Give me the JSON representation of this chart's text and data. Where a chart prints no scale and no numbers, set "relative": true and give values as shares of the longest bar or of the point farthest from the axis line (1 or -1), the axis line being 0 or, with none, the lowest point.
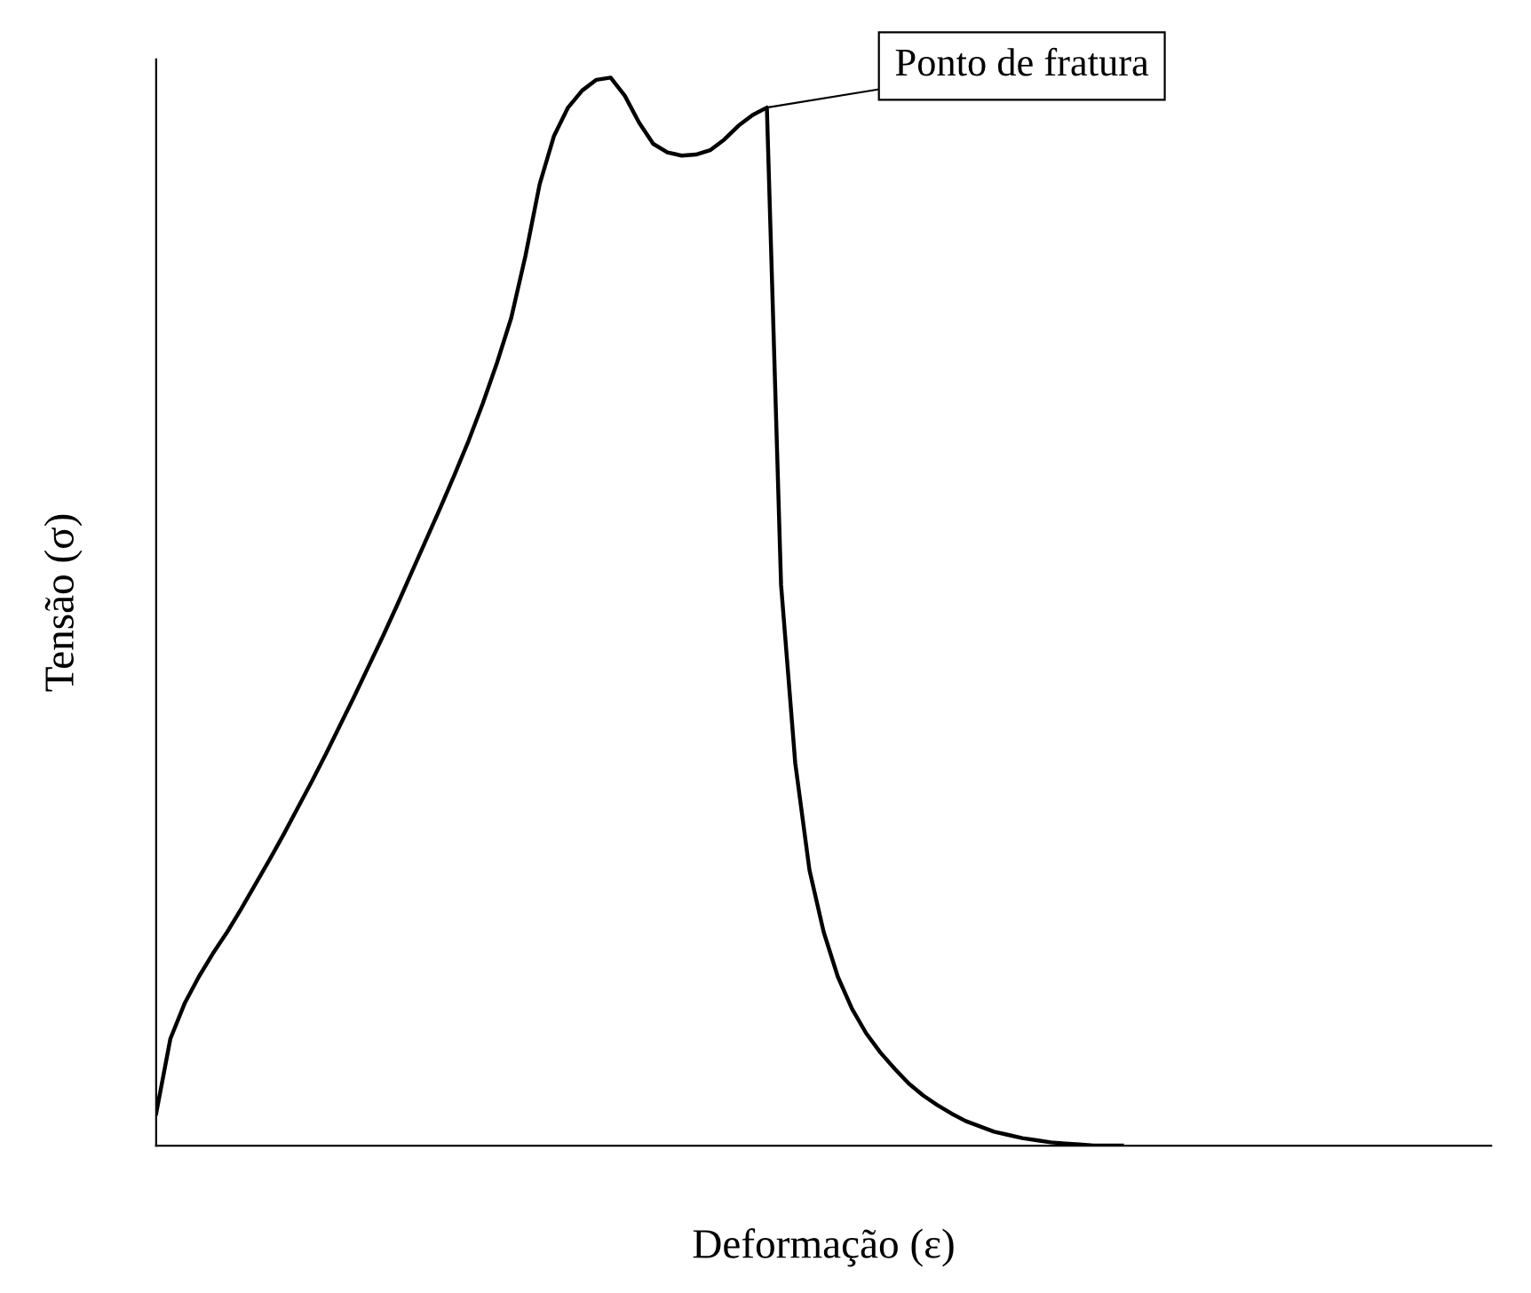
{
  "chart_data": {
    "type": "line",
    "relative": true,
    "xlabel": "Deformação (ε)",
    "ylabel": "Tensão (σ)",
    "annotations": [
      "Ponto de fratura"
    ],
    "categories": [
      null,
      null,
      null,
      null,
      null,
      null,
      null,
      null,
      null,
      null,
      null,
      null,
      null,
      null,
      null,
      null,
      null,
      null,
      null,
      null,
      null,
      null,
      null,
      null,
      null,
      null,
      null,
      null,
      null,
      null,
      null,
      null,
      null,
      null,
      null,
      null,
      null,
      null,
      null,
      null,
      null,
      null,
      null,
      null,
      null,
      null,
      null,
      null,
      null,
      null,
      null,
      null,
      null,
      null,
      null,
      null,
      null,
      null,
      null,
      null,
      null,
      null,
      null,
      null,
      null,
      null,
      null,
      null,
      null,
      null,
      null,
      null,
      null,
      null,
      null,
      null,
      null,
      null,
      null,
      null,
      null,
      null,
      null,
      null,
      null,
      null,
      null,
      null,
      null,
      null,
      null,
      null,
      null,
      null,
      null
    ],
    "series": [
      {
        "color": "#000000",
        "values": [
          0.03,
          0.1,
          0.133,
          0.158,
          0.18,
          0.2,
          0.222,
          0.245,
          0.268,
          0.292,
          0.317,
          0.342,
          0.368,
          0.395,
          0.422,
          0.45,
          0.478,
          0.507,
          0.537,
          0.567,
          0.597,
          0.628,
          0.66,
          0.695,
          0.733,
          0.775,
          0.833,
          0.9,
          0.945,
          0.972,
          0.988,
          0.998,
          1.0,
          0.983,
          0.958,
          0.938,
          0.93,
          0.927,
          0.928,
          0.932,
          0.942,
          0.955,
          0.965,
          0.972,
          0.525,
          0.358,
          0.258,
          0.2,
          0.158,
          0.128,
          0.105,
          0.087,
          0.072,
          0.058,
          0.047,
          0.038,
          0.03,
          0.023,
          0.018,
          0.013,
          0.01,
          0.007,
          0.005,
          0.003,
          0.002,
          0.001,
          0.0,
          0.0,
          0.0,
          null,
          null,
          null,
          null,
          null,
          null,
          null,
          null,
          null,
          null,
          null,
          null,
          null,
          null,
          null,
          null,
          null,
          null,
          null,
          null,
          null,
          null,
          null,
          null,
          null,
          null
        ]
      }
    ],
    "grid": false,
    "legend": false,
    "marker": "none",
    "line_style": "solid"
  }
}
